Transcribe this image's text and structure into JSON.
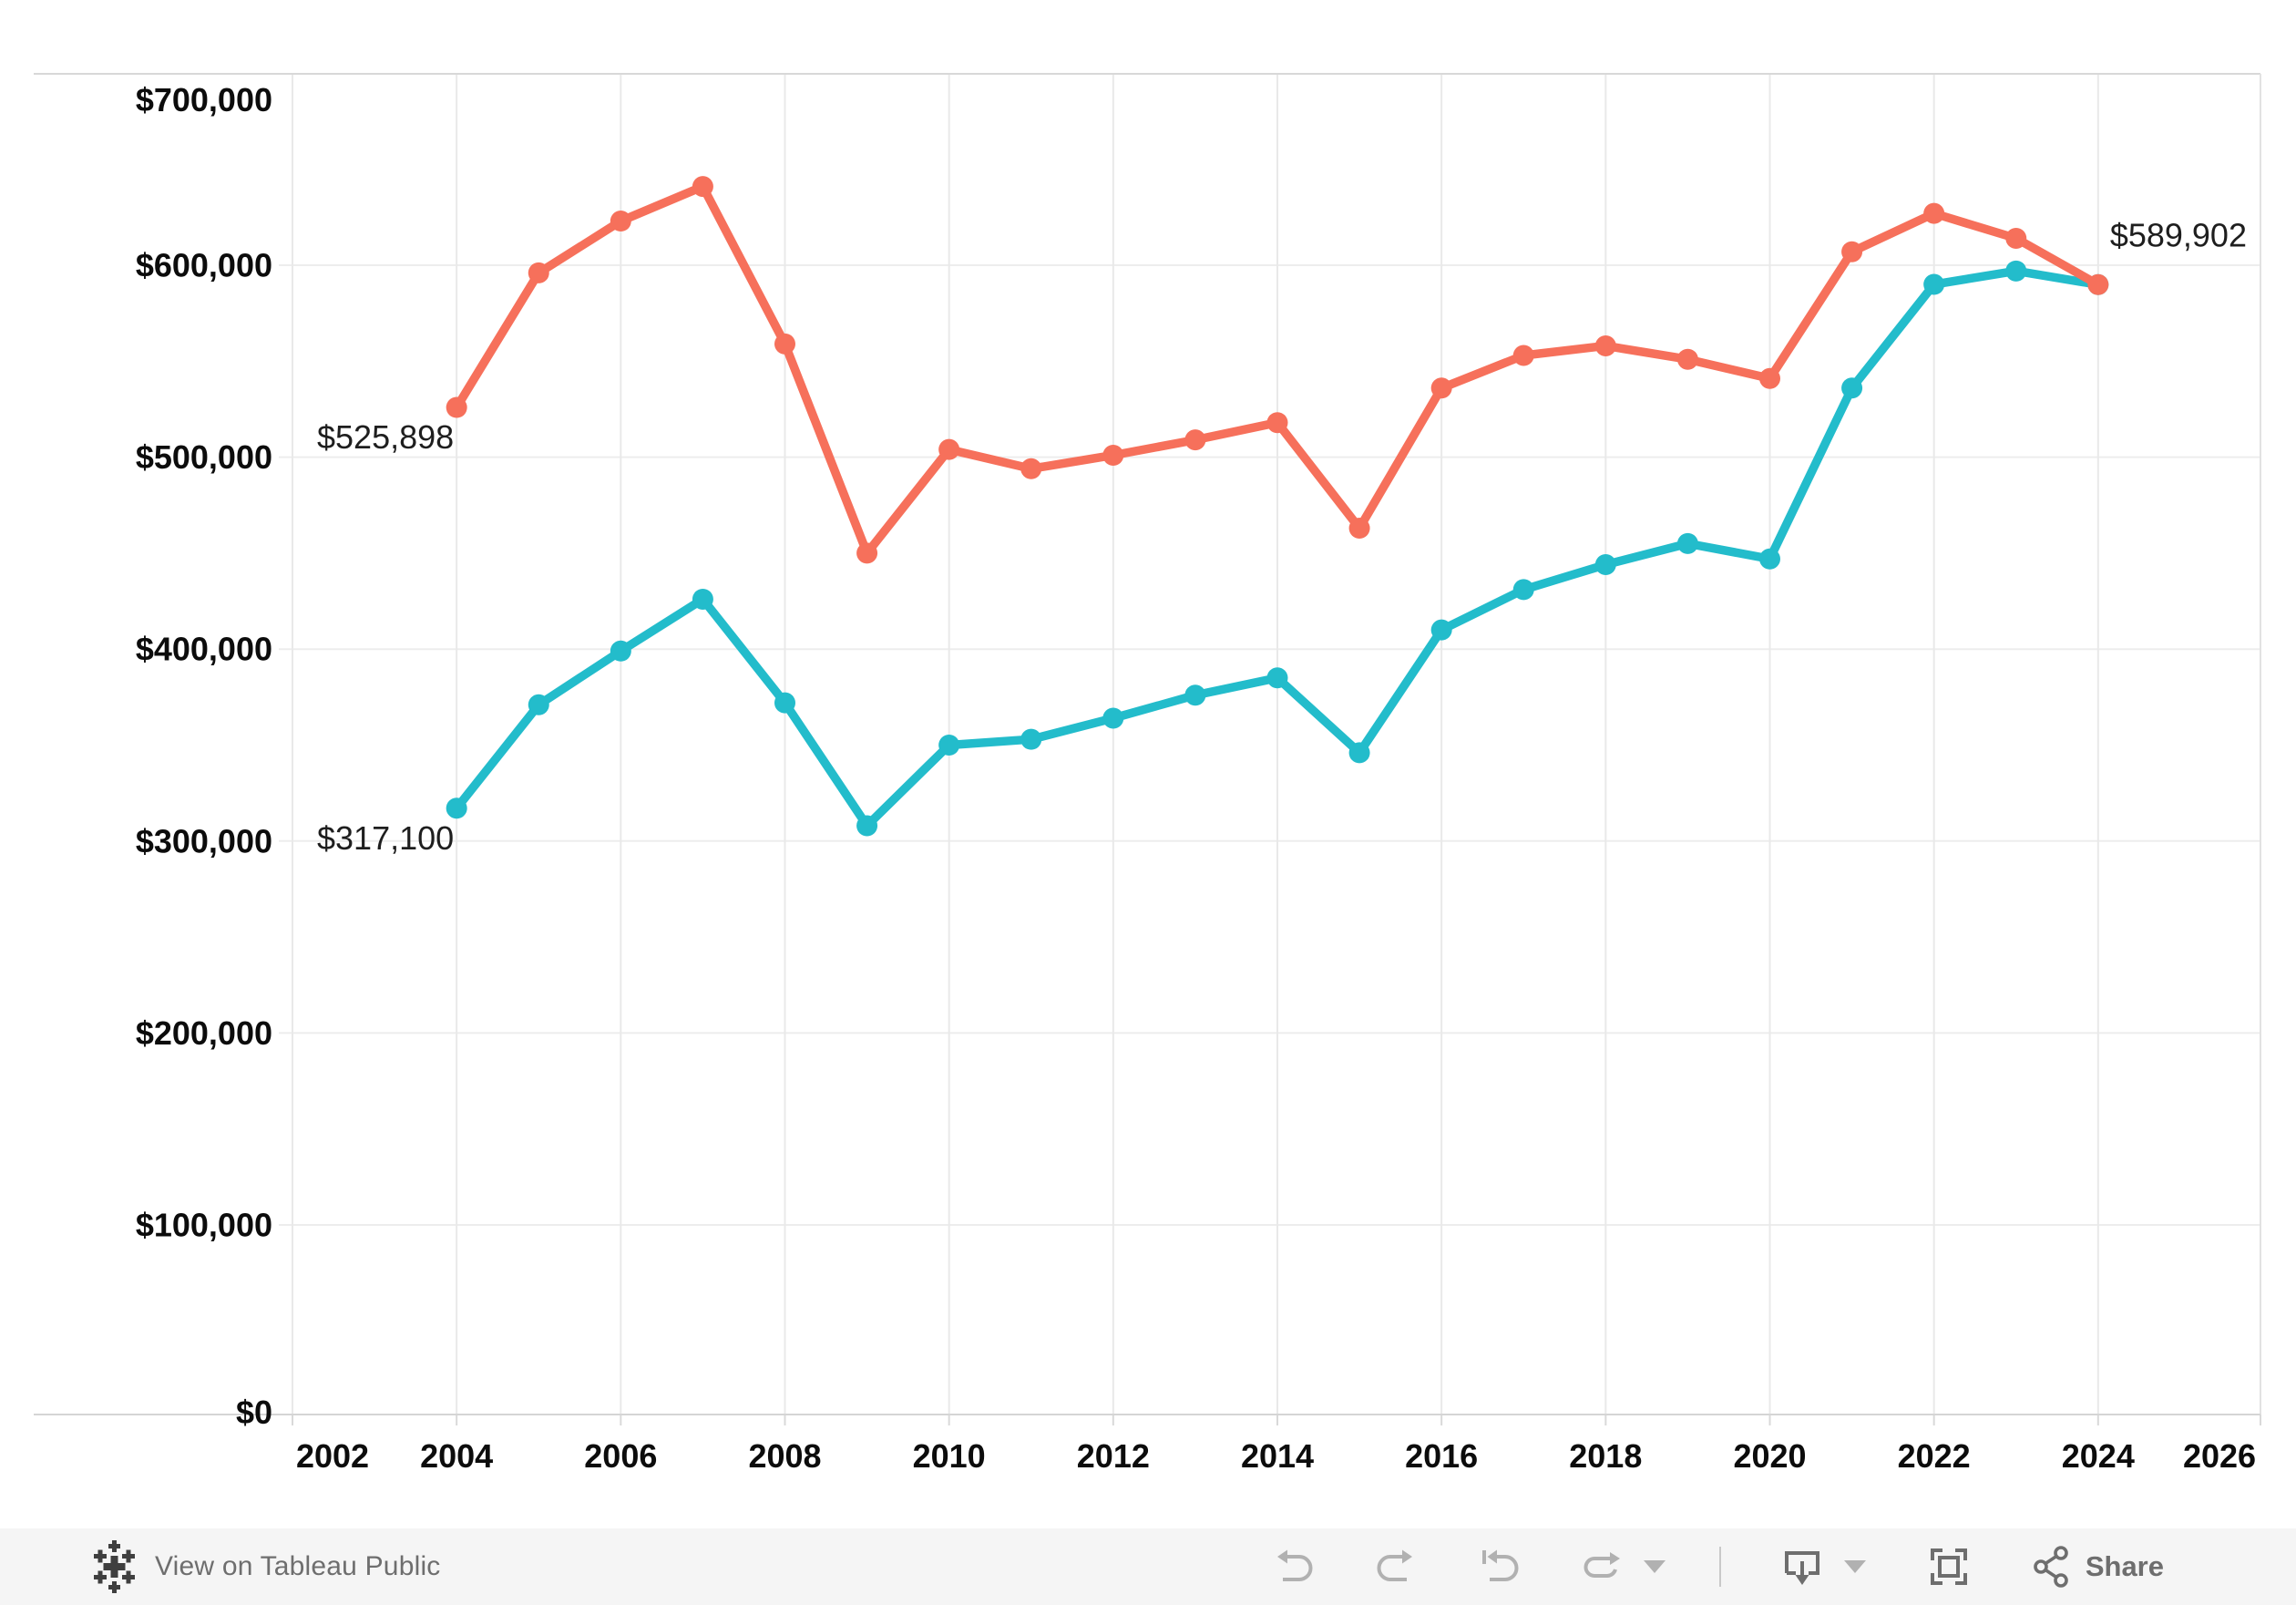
{
  "chart_data": {
    "type": "line",
    "title": "",
    "legend": "none",
    "grid": true,
    "x": [
      2004,
      2005,
      2006,
      2007,
      2008,
      2009,
      2010,
      2011,
      2012,
      2013,
      2014,
      2015,
      2016,
      2017,
      2018,
      2019,
      2020,
      2021,
      2022,
      2023,
      2024
    ],
    "series": [
      {
        "name": "orange-series",
        "color": "#F6705B",
        "values": [
          525898,
          596000,
          623000,
          641000,
          559000,
          450000,
          504000,
          494000,
          501000,
          509000,
          518000,
          463000,
          536000,
          553000,
          558000,
          551000,
          541000,
          607000,
          627000,
          614000,
          589902
        ]
      },
      {
        "name": "teal-series",
        "color": "#23BCCB",
        "values": [
          317100,
          371000,
          399000,
          426000,
          372000,
          308000,
          350000,
          353000,
          364000,
          376000,
          385000,
          346000,
          410000,
          431000,
          444000,
          455000,
          447000,
          536000,
          590000,
          597000,
          589902
        ]
      }
    ],
    "annotations": [
      {
        "text": "$525,898",
        "series": 0,
        "position": "first"
      },
      {
        "text": "$317,100",
        "series": 1,
        "position": "first"
      },
      {
        "text": "$589,902",
        "series": 0,
        "position": "last"
      }
    ],
    "x_axis": {
      "tick_values": [
        2002,
        2004,
        2006,
        2008,
        2010,
        2012,
        2014,
        2016,
        2018,
        2020,
        2022,
        2024,
        2026
      ],
      "tick_labels": [
        "2002",
        "2004",
        "2006",
        "2008",
        "2010",
        "2012",
        "2014",
        "2016",
        "2018",
        "2020",
        "2022",
        "2024",
        "2026"
      ],
      "xlim": [
        2002,
        2026
      ]
    },
    "y_axis": {
      "tick_values": [
        0,
        100000,
        200000,
        300000,
        400000,
        500000,
        600000,
        700000
      ],
      "tick_labels": [
        "$0",
        "$100,000",
        "$200,000",
        "$300,000",
        "$400,000",
        "$500,000",
        "$600,000",
        "$700,000"
      ],
      "ylim": [
        0,
        700000
      ]
    }
  },
  "toolbar": {
    "view_on_label": "View on Tableau Public",
    "share_label": "Share",
    "icons": [
      "tableau-logo-icon",
      "undo-icon",
      "redo-icon",
      "reset-icon",
      "refresh-icon",
      "caret-down-icon",
      "download-icon",
      "fullscreen-icon",
      "share-icon"
    ]
  },
  "colors": {
    "series_orange": "#F6705B",
    "series_teal": "#23BCCB",
    "gridline": "#ededed",
    "axis_line": "#d5d5d5",
    "toolbar_bg": "#f5f5f5"
  }
}
